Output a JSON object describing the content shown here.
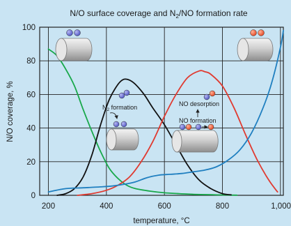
{
  "chart_data": {
    "type": "line",
    "title_parts": [
      "N/O surface coverage and N",
      "2",
      "/NO formation rate"
    ],
    "xlabel": "temperature, °C",
    "ylabel": "N/O coverage, %",
    "xlim": [
      170,
      1010
    ],
    "ylim": [
      0,
      100
    ],
    "xticks": [
      200,
      400,
      600,
      800,
      1000
    ],
    "xtick_labels": [
      "200",
      "400",
      "600",
      "800",
      "1,000"
    ],
    "yticks": [
      0,
      20,
      40,
      60,
      80,
      100
    ],
    "ytick_labels": [
      "0",
      "20",
      "40",
      "60",
      "80",
      "100"
    ],
    "grid": true,
    "colors": {
      "green": "#18a84a",
      "black": "#111111",
      "red": "#e03a30",
      "blue": "#1f7fc0"
    },
    "series": [
      {
        "color_key": "green",
        "x": [
          200,
          230,
          260,
          290,
          320,
          350,
          380,
          410,
          440,
          470,
          500,
          550,
          600,
          650,
          700,
          750,
          800,
          850
        ],
        "y": [
          87,
          83,
          75,
          65,
          51,
          38,
          26,
          16,
          10,
          6,
          4,
          2.5,
          1.5,
          1,
          0.6,
          0.4,
          0.2,
          0.1
        ]
      },
      {
        "color_key": "black",
        "x": [
          230,
          260,
          290,
          320,
          350,
          380,
          410,
          440,
          460,
          480,
          500,
          530,
          560,
          600,
          640,
          680,
          720,
          760,
          800,
          830
        ],
        "y": [
          0,
          1,
          4,
          11,
          24,
          42,
          57,
          66,
          69,
          68.5,
          66,
          60,
          52,
          42,
          30,
          18,
          9,
          4,
          1,
          0.3
        ]
      },
      {
        "color_key": "red",
        "x": [
          300,
          350,
          400,
          440,
          480,
          520,
          560,
          600,
          640,
          680,
          720,
          740,
          760,
          800,
          840,
          880,
          920,
          960,
          990
        ],
        "y": [
          0,
          1,
          3,
          6,
          11,
          20,
          32,
          47,
          60,
          70,
          74,
          73.5,
          72,
          65,
          52,
          36,
          21,
          9,
          2
        ]
      },
      {
        "color_key": "blue",
        "x": [
          200,
          260,
          320,
          380,
          420,
          460,
          500,
          540,
          580,
          620,
          660,
          700,
          740,
          780,
          820,
          860,
          900,
          940,
          970,
          1000,
          1010
        ],
        "y": [
          2,
          4,
          4.5,
          5,
          5.5,
          6.5,
          8,
          10.5,
          12,
          12.5,
          13,
          14,
          15,
          17,
          21,
          27,
          37,
          52,
          67,
          88,
          98
        ]
      }
    ],
    "annotations": {
      "n2_formation_sub": [
        "N",
        "2",
        " formation"
      ],
      "no_desorption": "NO desorption",
      "no_formation": "NO formation"
    }
  }
}
